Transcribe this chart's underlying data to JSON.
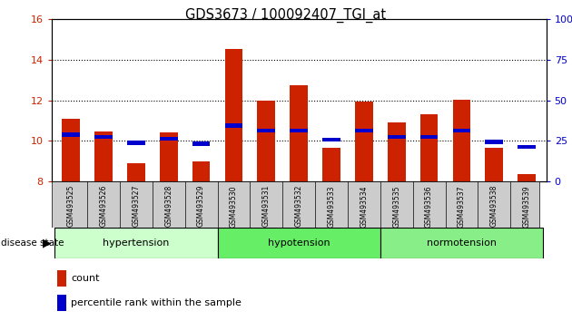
{
  "title": "GDS3673 / 100092407_TGI_at",
  "samples": [
    "GSM493525",
    "GSM493526",
    "GSM493527",
    "GSM493528",
    "GSM493529",
    "GSM493530",
    "GSM493531",
    "GSM493532",
    "GSM493533",
    "GSM493534",
    "GSM493535",
    "GSM493536",
    "GSM493537",
    "GSM493538",
    "GSM493539"
  ],
  "count_values": [
    11.1,
    10.45,
    8.9,
    10.4,
    9.0,
    14.55,
    12.0,
    12.75,
    9.65,
    11.95,
    10.9,
    11.3,
    12.05,
    9.65,
    8.35
  ],
  "percentile_values": [
    10.3,
    10.2,
    9.9,
    10.1,
    9.85,
    10.75,
    10.5,
    10.5,
    10.05,
    10.5,
    10.2,
    10.2,
    10.5,
    9.95,
    9.7
  ],
  "y_min": 8,
  "y_max": 16,
  "y_ticks_left": [
    8,
    10,
    12,
    14,
    16
  ],
  "right_tick_positions": [
    8,
    10,
    12,
    14,
    16
  ],
  "right_tick_labels": [
    "0",
    "25",
    "50",
    "75",
    "100%"
  ],
  "groups": [
    {
      "label": "hypertension",
      "start": 0,
      "end": 5
    },
    {
      "label": "hypotension",
      "start": 5,
      "end": 10
    },
    {
      "label": "normotension",
      "start": 10,
      "end": 15
    }
  ],
  "group_colors": [
    "#ccffcc",
    "#66ee66",
    "#88ee88"
  ],
  "bar_color": "#cc2200",
  "percentile_color": "#0000cc",
  "bar_width": 0.55,
  "tick_label_color_left": "#cc2200",
  "tick_label_color_right": "#0000cc",
  "legend_count_label": "count",
  "legend_percentile_label": "percentile rank within the sample",
  "xlabel_bg": "#cccccc"
}
